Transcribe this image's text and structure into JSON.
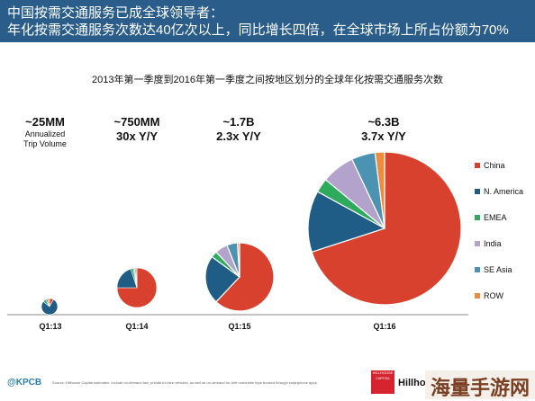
{
  "header": {
    "line1": "中国按需交通服务已成全球领导者：",
    "line2": "年化按需交通服务次数达40亿次以上，同比增长四倍，在全球市场上所占份额为70%"
  },
  "chart_data": {
    "type": "pie",
    "title": "2013年第一季度到2016年第一季度之间按地区划分的全球年化按需交通服务次数",
    "series_names": [
      "China",
      "N. America",
      "EMEA",
      "India",
      "SE Asia",
      "ROW"
    ],
    "colors": {
      "China": "#d9412f",
      "N. America": "#1f5d86",
      "EMEA": "#2eaa5c",
      "India": "#b3a3cc",
      "SE Asia": "#4c93b3",
      "ROW": "#ec8c3f"
    },
    "pies": [
      {
        "quarter": "Q1:13",
        "volume": "~25MM",
        "growth": "",
        "sub1": "Annualized",
        "sub2": "Trip Volume",
        "shares": {
          "China": 0.08,
          "N. America": 0.78,
          "EMEA": 0.06,
          "India": 0.0,
          "SE Asia": 0.04,
          "ROW": 0.04
        }
      },
      {
        "quarter": "Q1:14",
        "volume": "~750MM",
        "growth": "30x Y/Y",
        "sub1": "",
        "sub2": "",
        "shares": {
          "China": 0.75,
          "N. America": 0.2,
          "EMEA": 0.02,
          "India": 0.01,
          "SE Asia": 0.01,
          "ROW": 0.01
        }
      },
      {
        "quarter": "Q1:15",
        "volume": "~1.7B",
        "growth": "2.3x Y/Y",
        "sub1": "",
        "sub2": "",
        "shares": {
          "China": 0.62,
          "N. America": 0.23,
          "EMEA": 0.03,
          "India": 0.06,
          "SE Asia": 0.05,
          "ROW": 0.01
        }
      },
      {
        "quarter": "Q1:16",
        "volume": "~6.3B",
        "growth": "3.7x Y/Y",
        "sub1": "",
        "sub2": "",
        "shares": {
          "China": 0.7,
          "N. America": 0.13,
          "EMEA": 0.03,
          "India": 0.07,
          "SE Asia": 0.05,
          "ROW": 0.02
        }
      }
    ],
    "legend_position": "right"
  },
  "footer": {
    "handle": "@KPCB",
    "source": "Source: Hillhouse Capital estimates. Include on-demand taxi, private for-hire vehicles, as well as on-demand for-hire motorbike trips booked through smartphone apps.",
    "logo_small": "HILLHOUSE CAPITAL",
    "logo_name": "Hillhou",
    "watermark": "海量手游网"
  }
}
